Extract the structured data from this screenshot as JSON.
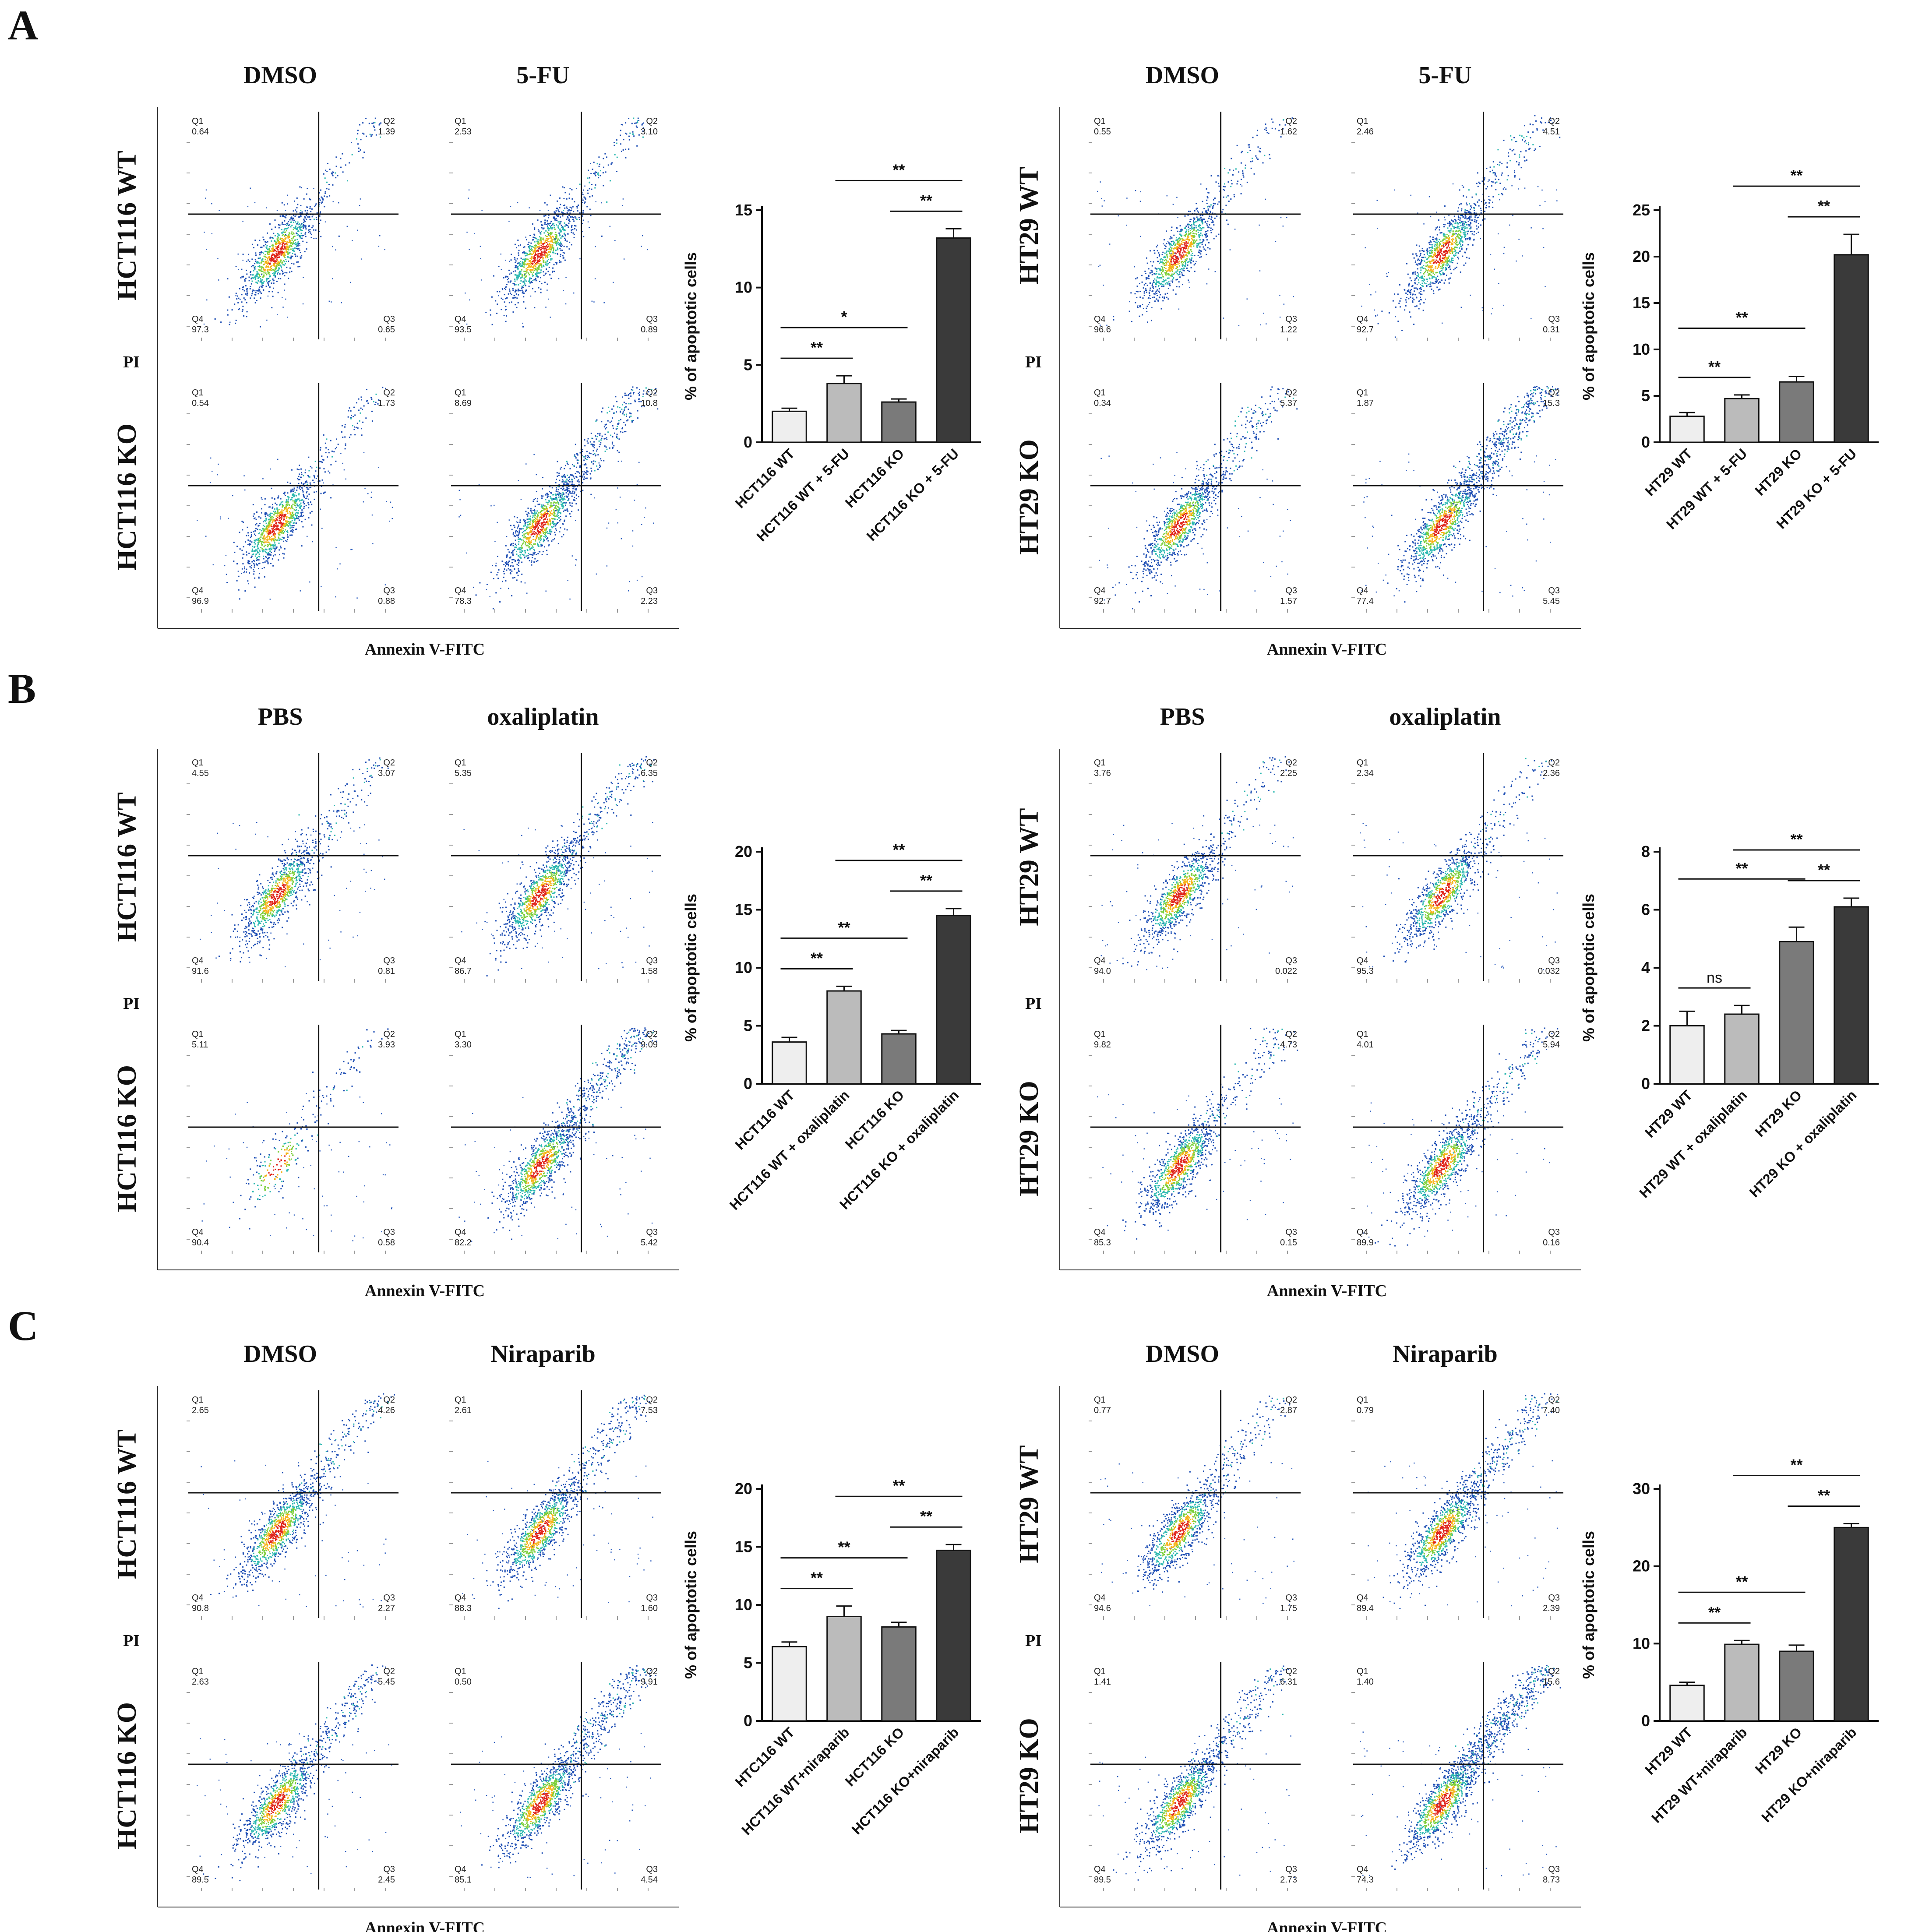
{
  "figure": {
    "sections": [
      {
        "letter": "A",
        "x_axis_label": "Annexin V-FITC",
        "y_axis_label": "PI",
        "cell_lines": [
          {
            "name": "HCT116",
            "condition_titles": [
              "DMSO",
              "5-FU"
            ],
            "row_labels": [
              "HCT116 WT",
              "HCT116 KO"
            ],
            "plots": [
              {
                "Q1": "0.64",
                "Q2": "1.39",
                "Q3": "0.65",
                "Q4": "97.3"
              },
              {
                "Q1": "2.53",
                "Q2": "3.10",
                "Q3": "0.89",
                "Q4": "93.5"
              },
              {
                "Q1": "0.54",
                "Q2": "1.73",
                "Q3": "0.88",
                "Q4": "96.9"
              },
              {
                "Q1": "8.69",
                "Q2": "10.8",
                "Q3": "2.23",
                "Q4": "78.3"
              }
            ]
          },
          {
            "name": "HT29",
            "condition_titles": [
              "DMSO",
              "5-FU"
            ],
            "row_labels": [
              "HT29 WT",
              "HT29 KO"
            ],
            "plots": [
              {
                "Q1": "0.55",
                "Q2": "1.62",
                "Q3": "1.22",
                "Q4": "96.6"
              },
              {
                "Q1": "2.46",
                "Q2": "4.51",
                "Q3": "0.31",
                "Q4": "92.7"
              },
              {
                "Q1": "0.34",
                "Q2": "5.37",
                "Q3": "1.57",
                "Q4": "92.7"
              },
              {
                "Q1": "1.87",
                "Q2": "15.3",
                "Q3": "5.45",
                "Q4": "77.4"
              }
            ]
          }
        ]
      },
      {
        "letter": "B",
        "x_axis_label": "Annexin V-FITC",
        "y_axis_label": "PI",
        "cell_lines": [
          {
            "name": "HCT116",
            "condition_titles": [
              "PBS",
              "oxaliplatin"
            ],
            "row_labels": [
              "HCT116 WT",
              "HCT116 KO"
            ],
            "plots": [
              {
                "Q1": "4.55",
                "Q2": "3.07",
                "Q3": "0.81",
                "Q4": "91.6"
              },
              {
                "Q1": "5.35",
                "Q2": "6.35",
                "Q3": "1.58",
                "Q4": "86.7"
              },
              {
                "Q1": "5.11",
                "Q2": "3.93",
                "Q3": "0.58",
                "Q4": "90.4"
              },
              {
                "Q1": "3.30",
                "Q2": "9.09",
                "Q3": "5.42",
                "Q4": "82.2"
              }
            ]
          },
          {
            "name": "HT29",
            "condition_titles": [
              "PBS",
              "oxaliplatin"
            ],
            "row_labels": [
              "HT29 WT",
              "HT29 KO"
            ],
            "plots": [
              {
                "Q1": "3.76",
                "Q2": "2.25",
                "Q3": "0.022",
                "Q4": "94.0"
              },
              {
                "Q1": "2.34",
                "Q2": "2.36",
                "Q3": "0.032",
                "Q4": "95.3"
              },
              {
                "Q1": "9.82",
                "Q2": "4.73",
                "Q3": "0.15",
                "Q4": "85.3"
              },
              {
                "Q1": "4.01",
                "Q2": "5.94",
                "Q3": "0.16",
                "Q4": "89.9"
              }
            ]
          }
        ]
      },
      {
        "letter": "C",
        "x_axis_label": "Annexin V-FITC",
        "y_axis_label": "PI",
        "cell_lines": [
          {
            "name": "HCT116",
            "condition_titles": [
              "DMSO",
              "Niraparib"
            ],
            "row_labels": [
              "HCT116 WT",
              "HCT116 KO"
            ],
            "plots": [
              {
                "Q1": "2.65",
                "Q2": "4.26",
                "Q3": "2.27",
                "Q4": "90.8"
              },
              {
                "Q1": "2.61",
                "Q2": "7.53",
                "Q3": "1.60",
                "Q4": "88.3"
              },
              {
                "Q1": "2.63",
                "Q2": "5.45",
                "Q3": "2.45",
                "Q4": "89.5"
              },
              {
                "Q1": "0.50",
                "Q2": "9.91",
                "Q3": "4.54",
                "Q4": "85.1"
              }
            ]
          },
          {
            "name": "HT29",
            "condition_titles": [
              "DMSO",
              "Niraparib"
            ],
            "row_labels": [
              "HT29 WT",
              "HT29 KO"
            ],
            "plots": [
              {
                "Q1": "0.77",
                "Q2": "2.87",
                "Q3": "1.75",
                "Q4": "94.6"
              },
              {
                "Q1": "0.79",
                "Q2": "7.40",
                "Q3": "2.39",
                "Q4": "89.4"
              },
              {
                "Q1": "1.41",
                "Q2": "6.31",
                "Q3": "2.73",
                "Q4": "89.5"
              },
              {
                "Q1": "1.40",
                "Q2": "15.6",
                "Q3": "8.73",
                "Q4": "74.3"
              }
            ]
          }
        ]
      }
    ]
  },
  "chart_data": [
    {
      "id": "A-HCT116",
      "type": "bar",
      "ylabel": "% of apoptotic cells",
      "ylim": [
        0,
        15
      ],
      "yticks": [
        "0",
        "5",
        "10",
        "15"
      ],
      "categories": [
        "HCT116 WT",
        "HCT116 WT + 5-FU",
        "HCT116 KO",
        "HCT116 KO + 5-FU"
      ],
      "values": [
        2.0,
        3.8,
        2.6,
        13.2
      ],
      "errors": [
        0.2,
        0.5,
        0.2,
        0.6
      ],
      "colors": [
        "#eeeeee",
        "#bbbbbb",
        "#7a7a7a",
        "#3a3a3a"
      ],
      "significance": [
        {
          "from": 0,
          "to": 1,
          "label": "**"
        },
        {
          "from": 0,
          "to": 2,
          "label": "*"
        },
        {
          "from": 2,
          "to": 3,
          "label": "**"
        },
        {
          "from": 1,
          "to": 3,
          "label": "**"
        }
      ]
    },
    {
      "id": "A-HT29",
      "type": "bar",
      "ylabel": "% of apoptotic cells",
      "ylim": [
        0,
        25
      ],
      "yticks": [
        "0",
        "5",
        "10",
        "15",
        "20",
        "25"
      ],
      "categories": [
        "HT29 WT",
        "HT29 WT + 5-FU",
        "HT29 KO",
        "HT29 KO + 5-FU"
      ],
      "values": [
        2.8,
        4.7,
        6.5,
        20.2
      ],
      "errors": [
        0.4,
        0.4,
        0.6,
        2.2
      ],
      "colors": [
        "#eeeeee",
        "#bbbbbb",
        "#7a7a7a",
        "#3a3a3a"
      ],
      "significance": [
        {
          "from": 0,
          "to": 1,
          "label": "**"
        },
        {
          "from": 0,
          "to": 2,
          "label": "**"
        },
        {
          "from": 2,
          "to": 3,
          "label": "**"
        },
        {
          "from": 1,
          "to": 3,
          "label": "**"
        }
      ]
    },
    {
      "id": "B-HCT116",
      "type": "bar",
      "ylabel": "% of apoptotic cells",
      "ylim": [
        0,
        20
      ],
      "yticks": [
        "0",
        "5",
        "10",
        "15",
        "20"
      ],
      "categories": [
        "HCT116 WT",
        "HCT116 WT + oxaliplatin",
        "HCT116 KO",
        "HCT116 KO + oxaliplatin"
      ],
      "values": [
        3.6,
        8.0,
        4.3,
        14.5
      ],
      "errors": [
        0.4,
        0.4,
        0.3,
        0.6
      ],
      "colors": [
        "#eeeeee",
        "#bbbbbb",
        "#7a7a7a",
        "#3a3a3a"
      ],
      "significance": [
        {
          "from": 0,
          "to": 1,
          "label": "**"
        },
        {
          "from": 0,
          "to": 2,
          "label": "**"
        },
        {
          "from": 2,
          "to": 3,
          "label": "**"
        },
        {
          "from": 1,
          "to": 3,
          "label": "**"
        }
      ]
    },
    {
      "id": "B-HT29",
      "type": "bar",
      "ylabel": "% of apoptotic cells",
      "ylim": [
        0,
        8
      ],
      "yticks": [
        "0",
        "2",
        "4",
        "6",
        "8"
      ],
      "categories": [
        "HT29 WT",
        "HT29 WT + oxaliplatin",
        "HT29 KO",
        "HT29 KO + oxaliplatin"
      ],
      "values": [
        2.0,
        2.4,
        4.9,
        6.1
      ],
      "errors": [
        0.5,
        0.3,
        0.5,
        0.3
      ],
      "colors": [
        "#eeeeee",
        "#bbbbbb",
        "#7a7a7a",
        "#3a3a3a"
      ],
      "significance": [
        {
          "from": 0,
          "to": 1,
          "label": "ns"
        },
        {
          "from": 0,
          "to": 2,
          "label": "**"
        },
        {
          "from": 2,
          "to": 3,
          "label": "**"
        },
        {
          "from": 1,
          "to": 3,
          "label": "**"
        }
      ]
    },
    {
      "id": "C-HCT116",
      "type": "bar",
      "ylabel": "% of apoptotic cells",
      "ylim": [
        0,
        20
      ],
      "yticks": [
        "0",
        "5",
        "10",
        "15",
        "20"
      ],
      "categories": [
        "HTC116 WT",
        "HCT116 WT+niraparib",
        "HCT116 KO",
        "HCT116 KO+niraparib"
      ],
      "values": [
        6.4,
        9.0,
        8.1,
        14.7
      ],
      "errors": [
        0.4,
        0.9,
        0.4,
        0.5
      ],
      "colors": [
        "#eeeeee",
        "#bbbbbb",
        "#7a7a7a",
        "#3a3a3a"
      ],
      "significance": [
        {
          "from": 0,
          "to": 1,
          "label": "**"
        },
        {
          "from": 0,
          "to": 2,
          "label": "**"
        },
        {
          "from": 2,
          "to": 3,
          "label": "**"
        },
        {
          "from": 1,
          "to": 3,
          "label": "**"
        }
      ]
    },
    {
      "id": "C-HT29",
      "type": "bar",
      "ylabel": "% of apoptotic cells",
      "ylim": [
        0,
        30
      ],
      "yticks": [
        "0",
        "10",
        "20",
        "30"
      ],
      "categories": [
        "HT29 WT",
        "HT29 WT+niraparib",
        "HT29 KO",
        "HT29 KO+niraparib"
      ],
      "values": [
        4.6,
        9.9,
        9.0,
        25.0
      ],
      "errors": [
        0.4,
        0.5,
        0.8,
        0.5
      ],
      "colors": [
        "#eeeeee",
        "#bbbbbb",
        "#7a7a7a",
        "#3a3a3a"
      ],
      "significance": [
        {
          "from": 0,
          "to": 1,
          "label": "**"
        },
        {
          "from": 0,
          "to": 2,
          "label": "**"
        },
        {
          "from": 2,
          "to": 3,
          "label": "**"
        },
        {
          "from": 1,
          "to": 3,
          "label": "**"
        }
      ]
    }
  ]
}
